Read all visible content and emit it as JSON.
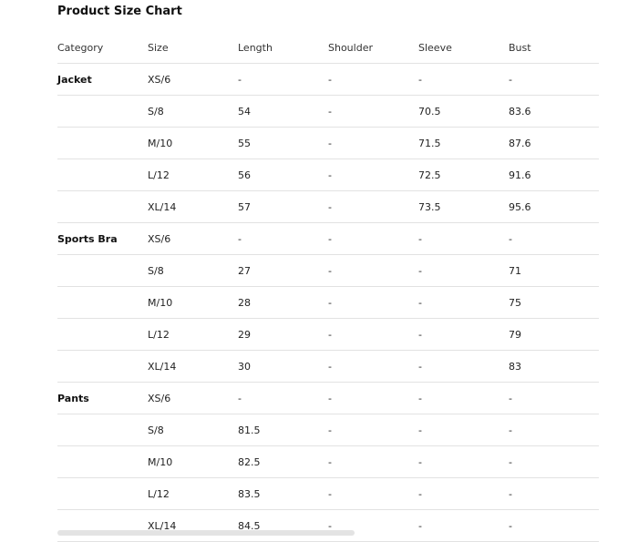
{
  "title": "Product Size Chart",
  "headers": [
    "Category",
    "Size",
    "Length",
    "Shoulder",
    "Sleeve",
    "Bust"
  ],
  "rows": [
    [
      "Jacket",
      "XS/6",
      "-",
      "-",
      "-",
      "-"
    ],
    [
      "",
      "S/8",
      "54",
      "-",
      "70.5",
      "83.6"
    ],
    [
      "",
      "M/10",
      "55",
      "-",
      "71.5",
      "87.6"
    ],
    [
      "",
      "L/12",
      "56",
      "-",
      "72.5",
      "91.6"
    ],
    [
      "",
      "XL/14",
      "57",
      "-",
      "73.5",
      "95.6"
    ],
    [
      "Sports Bra",
      "XS/6",
      "-",
      "-",
      "-",
      "-"
    ],
    [
      "",
      "S/8",
      "27",
      "-",
      "-",
      "71"
    ],
    [
      "",
      "M/10",
      "28",
      "-",
      "-",
      "75"
    ],
    [
      "",
      "L/12",
      "29",
      "-",
      "-",
      "79"
    ],
    [
      "",
      "XL/14",
      "30",
      "-",
      "-",
      "83"
    ],
    [
      "Pants",
      "XS/6",
      "-",
      "-",
      "-",
      "-"
    ],
    [
      "",
      "S/8",
      "81.5",
      "-",
      "-",
      "-"
    ],
    [
      "",
      "M/10",
      "82.5",
      "-",
      "-",
      "-"
    ],
    [
      "",
      "L/12",
      "83.5",
      "-",
      "-",
      "-"
    ],
    [
      "",
      "XL/14",
      "84.5",
      "-",
      "-",
      "-"
    ]
  ]
}
